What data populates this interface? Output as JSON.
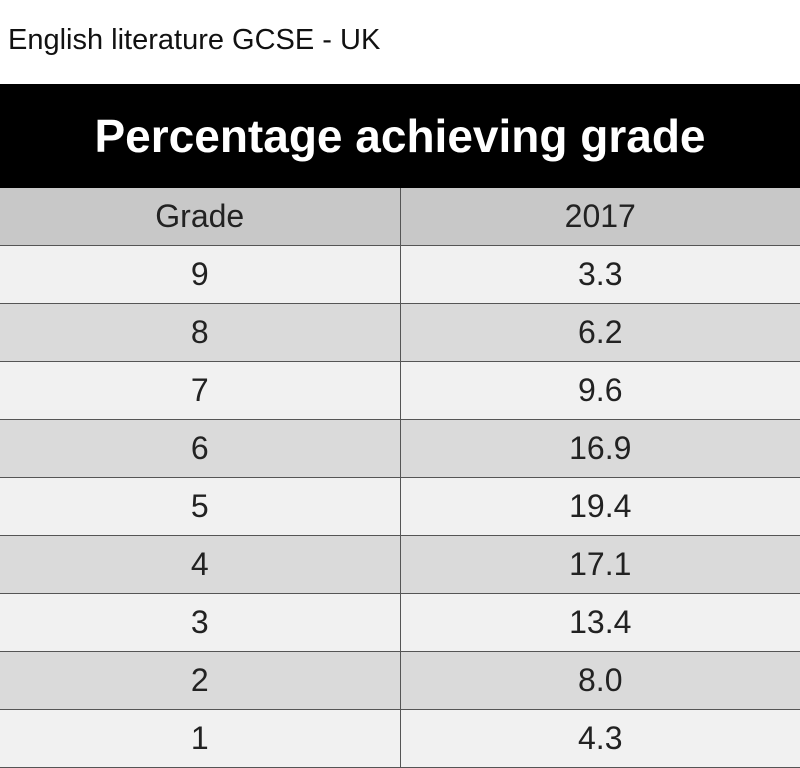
{
  "header": {
    "subtitle": "English literature GCSE - UK",
    "title": "Percentage achieving grade"
  },
  "table": {
    "columns": [
      "Grade",
      "2017"
    ],
    "rows": [
      [
        "9",
        "3.3"
      ],
      [
        "8",
        "6.2"
      ],
      [
        "7",
        "9.6"
      ],
      [
        "6",
        "16.9"
      ],
      [
        "5",
        "19.4"
      ],
      [
        "4",
        "17.1"
      ],
      [
        "3",
        "13.4"
      ],
      [
        "2",
        "8.0"
      ],
      [
        "1",
        "4.3"
      ]
    ]
  }
}
